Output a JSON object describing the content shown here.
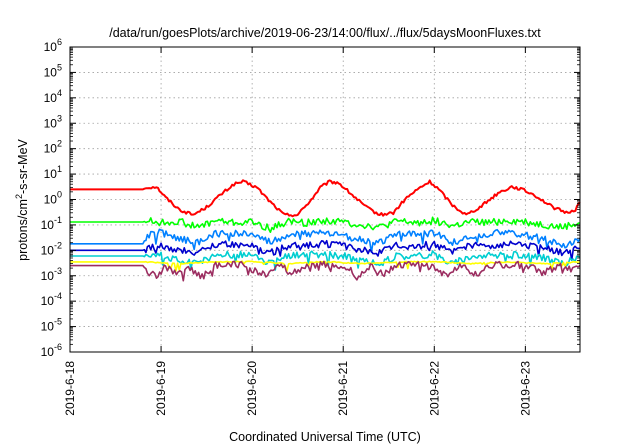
{
  "chart_data": {
    "type": "line",
    "title": "/data/run/goesPlots/archive/2019-06-23/14:00/flux/../flux/5daysMoonFluxes.txt",
    "xlabel": "Coordinated Universal Time (UTC)",
    "ylabel_parts": [
      "protons/cm",
      "2",
      "-s-sr-MeV"
    ],
    "y_scale": "log",
    "ylim": [
      1e-06,
      1000000.0
    ],
    "xlim_days": [
      0,
      5.6
    ],
    "grid": true,
    "legend": "none",
    "x_ticks": [
      {
        "day": 0,
        "label": "2019-6-18"
      },
      {
        "day": 1,
        "label": "2019-6-19"
      },
      {
        "day": 2,
        "label": "2019-6-20"
      },
      {
        "day": 3,
        "label": "2019-6-21"
      },
      {
        "day": 4,
        "label": "2019-6-22"
      },
      {
        "day": 5,
        "label": "2019-6-23"
      }
    ],
    "y_ticks": [
      {
        "exp": -6,
        "base": "10",
        "sup": "-6"
      },
      {
        "exp": -5,
        "base": "10",
        "sup": "-5"
      },
      {
        "exp": -4,
        "base": "10",
        "sup": "-4"
      },
      {
        "exp": -3,
        "base": "10",
        "sup": "-3"
      },
      {
        "exp": -2,
        "base": "10",
        "sup": "-2"
      },
      {
        "exp": -1,
        "base": "10",
        "sup": "-1"
      },
      {
        "exp": 0,
        "base": "10",
        "sup": "0"
      },
      {
        "exp": 1,
        "base": "10",
        "sup": "1"
      },
      {
        "exp": 2,
        "base": "10",
        "sup": "2"
      },
      {
        "exp": 3,
        "base": "10",
        "sup": "3"
      },
      {
        "exp": 4,
        "base": "10",
        "sup": "4"
      },
      {
        "exp": 5,
        "base": "10",
        "sup": "5"
      },
      {
        "exp": 6,
        "base": "10",
        "sup": "6"
      }
    ],
    "series": [
      {
        "color": "#ff0000",
        "x": [
          0,
          0.8,
          0.85,
          0.95,
          1.05,
          1.2,
          1.35,
          1.5,
          1.65,
          1.8,
          1.9,
          2.05,
          2.2,
          2.35,
          2.5,
          2.65,
          2.75,
          2.85,
          2.95,
          3.1,
          3.25,
          3.4,
          3.55,
          3.7,
          3.85,
          3.95,
          4.05,
          4.2,
          4.35,
          4.5,
          4.7,
          4.85,
          4.95,
          5.1,
          5.3,
          5.45,
          5.55,
          5.6
        ],
        "y": [
          2.5,
          2.5,
          3.0,
          3.2,
          1.2,
          0.4,
          0.25,
          0.5,
          1.5,
          4.0,
          5.0,
          3.0,
          0.8,
          0.25,
          0.25,
          1.0,
          3.0,
          5.0,
          4.5,
          1.5,
          0.5,
          0.25,
          0.3,
          1.2,
          3.0,
          5.0,
          2.5,
          0.6,
          0.25,
          0.5,
          1.8,
          3.2,
          2.6,
          1.5,
          0.5,
          0.3,
          0.4,
          0.8
        ]
      },
      {
        "color": "#00ff00",
        "x": [
          0,
          0.8,
          0.85,
          1.0,
          1.2,
          1.4,
          1.6,
          1.8,
          2.0,
          2.2,
          2.4,
          2.6,
          2.8,
          3.0,
          3.2,
          3.4,
          3.6,
          3.8,
          4.0,
          4.2,
          4.4,
          4.6,
          4.8,
          5.0,
          5.2,
          5.4,
          5.6
        ],
        "y": [
          0.13,
          0.13,
          0.15,
          0.12,
          0.14,
          0.08,
          0.15,
          0.12,
          0.13,
          0.07,
          0.14,
          0.12,
          0.15,
          0.13,
          0.1,
          0.08,
          0.14,
          0.12,
          0.15,
          0.09,
          0.13,
          0.12,
          0.15,
          0.13,
          0.1,
          0.08,
          0.12
        ]
      },
      {
        "color": "#0080ff",
        "x": [
          0,
          0.8,
          0.85,
          1.0,
          1.2,
          1.4,
          1.6,
          1.8,
          2.0,
          2.2,
          2.4,
          2.6,
          2.8,
          3.0,
          3.2,
          3.4,
          3.6,
          3.8,
          4.0,
          4.2,
          4.4,
          4.6,
          4.8,
          5.0,
          5.2,
          5.4,
          5.6
        ],
        "y": [
          0.018,
          0.018,
          0.04,
          0.05,
          0.03,
          0.02,
          0.045,
          0.05,
          0.04,
          0.02,
          0.04,
          0.045,
          0.05,
          0.04,
          0.025,
          0.02,
          0.045,
          0.04,
          0.05,
          0.02,
          0.04,
          0.045,
          0.05,
          0.04,
          0.03,
          0.015,
          0.03
        ]
      },
      {
        "color": "#0000cd",
        "x": [
          0,
          0.8,
          0.85,
          1.0,
          1.2,
          1.4,
          1.6,
          1.8,
          2.0,
          2.2,
          2.4,
          2.6,
          2.8,
          3.0,
          3.2,
          3.4,
          3.6,
          3.8,
          4.0,
          4.2,
          4.4,
          4.6,
          4.8,
          5.0,
          5.2,
          5.4,
          5.6
        ],
        "y": [
          0.01,
          0.01,
          0.012,
          0.015,
          0.01,
          0.008,
          0.016,
          0.018,
          0.015,
          0.008,
          0.015,
          0.016,
          0.018,
          0.015,
          0.01,
          0.008,
          0.016,
          0.014,
          0.018,
          0.008,
          0.015,
          0.016,
          0.018,
          0.015,
          0.012,
          0.008,
          0.012
        ]
      },
      {
        "color": "#00ced1",
        "x": [
          0,
          0.8,
          0.85,
          1.0,
          1.2,
          1.4,
          1.6,
          1.8,
          2.0,
          2.2,
          2.4,
          2.6,
          2.8,
          3.0,
          3.2,
          3.4,
          3.6,
          3.8,
          4.0,
          4.2,
          4.4,
          4.6,
          4.8,
          5.0,
          5.2,
          5.4,
          5.6
        ],
        "y": [
          0.006,
          0.006,
          0.005,
          0.007,
          0.004,
          0.003,
          0.006,
          0.007,
          0.006,
          0.003,
          0.006,
          0.007,
          0.007,
          0.006,
          0.004,
          0.003,
          0.006,
          0.006,
          0.007,
          0.003,
          0.006,
          0.006,
          0.007,
          0.006,
          0.005,
          0.003,
          0.005
        ]
      },
      {
        "color": "#ffff00",
        "x": [
          0,
          0.8,
          0.85,
          1.2,
          1.6,
          2.0,
          2.4,
          2.8,
          3.2,
          3.6,
          4.0,
          4.4,
          4.8,
          5.2,
          5.6
        ],
        "y": [
          0.0035,
          0.0035,
          0.0035,
          0.003,
          0.0035,
          0.0036,
          0.003,
          0.0036,
          0.003,
          0.0035,
          0.0036,
          0.003,
          0.0035,
          0.003,
          0.0035
        ]
      },
      {
        "color": "#9b2d60",
        "x": [
          0,
          0.8,
          0.85,
          0.95,
          1.05,
          1.15,
          1.3,
          1.45,
          1.6,
          1.75,
          1.9,
          2.05,
          2.15,
          2.3,
          2.45,
          2.6,
          2.75,
          2.9,
          3.05,
          3.15,
          3.3,
          3.45,
          3.6,
          3.75,
          3.9,
          4.05,
          4.15,
          4.3,
          4.45,
          4.6,
          4.75,
          4.9,
          5.05,
          5.2,
          5.35,
          5.5,
          5.6
        ],
        "y": [
          0.0025,
          0.0025,
          0.0015,
          0.001,
          0.0025,
          0.0012,
          0.0022,
          0.0009,
          0.0025,
          0.0027,
          0.0028,
          0.0015,
          0.001,
          0.0025,
          0.0012,
          0.0026,
          0.0027,
          0.0028,
          0.0022,
          0.0009,
          0.0024,
          0.0012,
          0.0026,
          0.0027,
          0.0028,
          0.0015,
          0.001,
          0.0025,
          0.0011,
          0.0026,
          0.0027,
          0.0028,
          0.0024,
          0.0012,
          0.0025,
          0.0018,
          0.0025
        ]
      }
    ]
  }
}
